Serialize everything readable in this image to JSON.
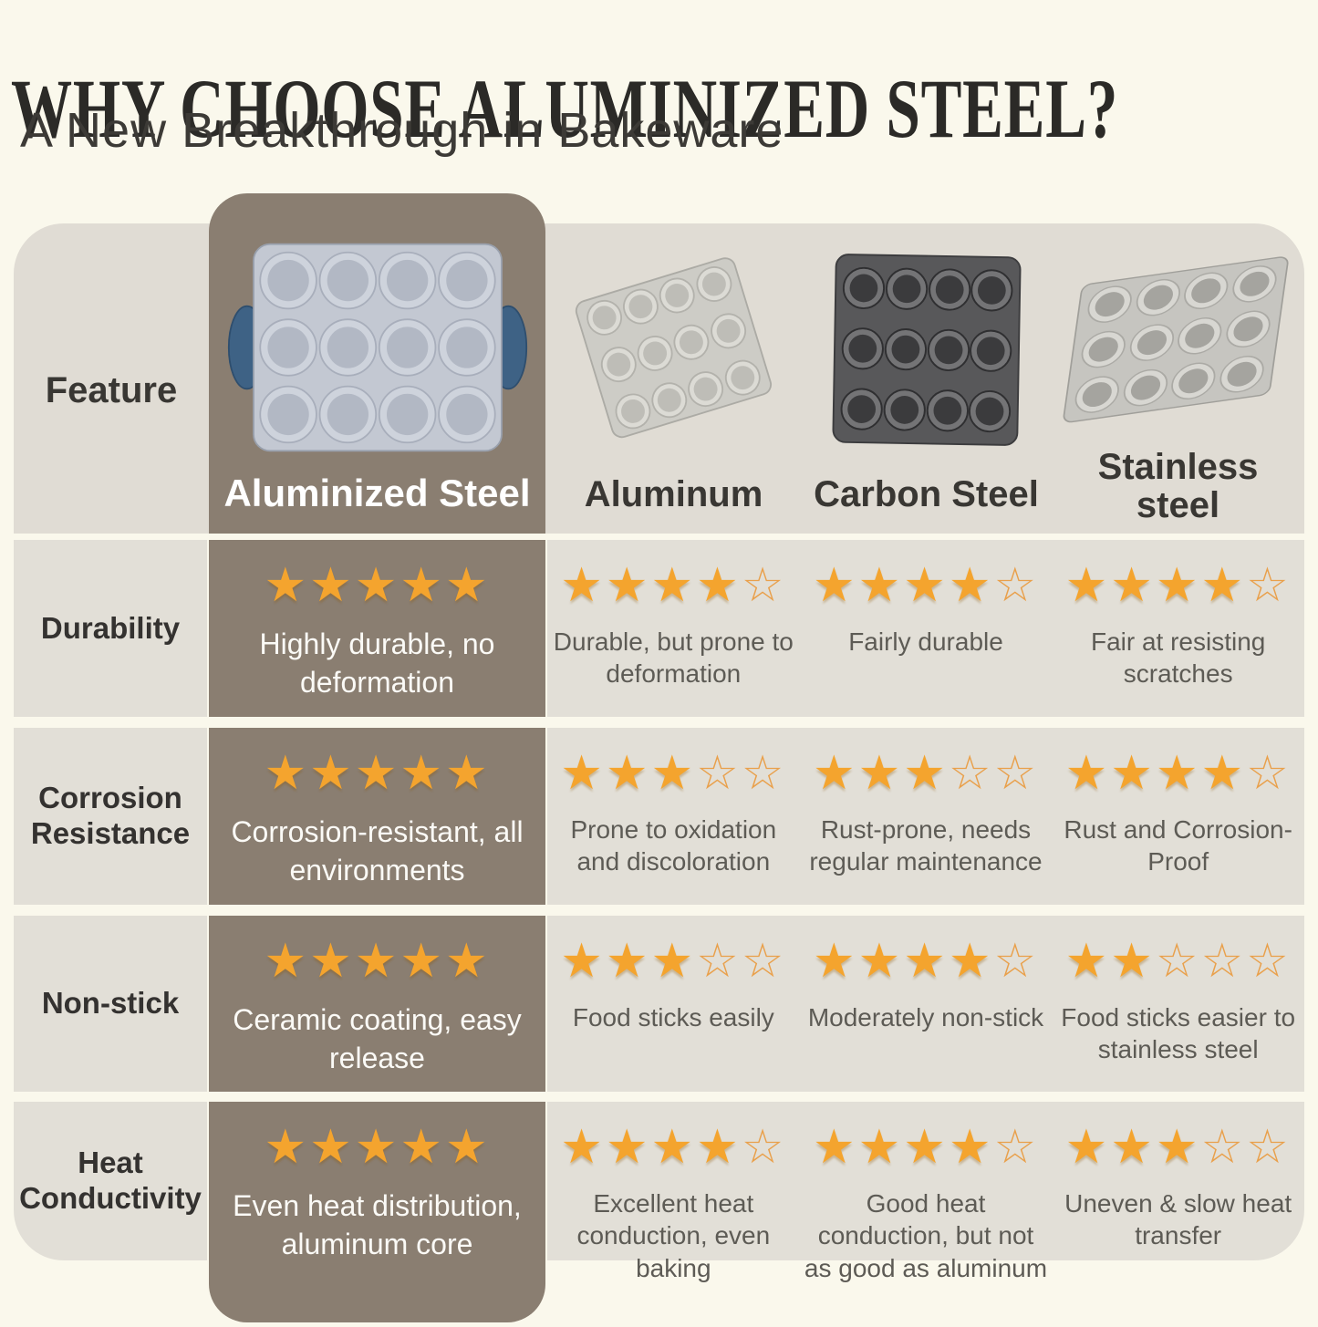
{
  "header": {
    "title": "WHY CHOOSE ALUMINIZED STEEL?",
    "subtitle": "A New Breakthrough in Bakeware"
  },
  "table": {
    "feature_header": "Feature",
    "columns": [
      {
        "label": "Aluminized Steel",
        "image": "aluminized-steel-muffin-pan",
        "highlight": true
      },
      {
        "label": "Aluminum",
        "image": "aluminum-muffin-pan",
        "highlight": false
      },
      {
        "label": "Carbon Steel",
        "image": "carbon-steel-muffin-pan",
        "highlight": false
      },
      {
        "label": "Stainless steel",
        "image": "stainless-steel-muffin-pan",
        "highlight": false
      }
    ],
    "rows": [
      {
        "feature": "Durability",
        "cells": [
          {
            "stars": 5,
            "text": "Highly durable, no deformation"
          },
          {
            "stars": 4,
            "text": "Durable, but prone to deformation"
          },
          {
            "stars": 4,
            "text": "Fairly durable"
          },
          {
            "stars": 4,
            "text": "Fair at resisting scratches"
          }
        ]
      },
      {
        "feature": "Corrosion Resistance",
        "cells": [
          {
            "stars": 5,
            "text": "Corrosion-resistant, all environments"
          },
          {
            "stars": 3,
            "text": "Prone to oxidation and discoloration"
          },
          {
            "stars": 3,
            "text": "Rust-prone, needs regular maintenance"
          },
          {
            "stars": 4,
            "text": "Rust and Corrosion-Proof"
          }
        ]
      },
      {
        "feature": "Non-stick",
        "cells": [
          {
            "stars": 5,
            "text": "Ceramic coating, easy release"
          },
          {
            "stars": 3,
            "text": "Food sticks easily"
          },
          {
            "stars": 4,
            "text": "Moderately non-stick"
          },
          {
            "stars": 2,
            "text": "Food sticks easier to stainless steel"
          }
        ]
      },
      {
        "feature": "Heat Conductivity",
        "cells": [
          {
            "stars": 5,
            "text": "Even heat distribution, aluminum core"
          },
          {
            "stars": 4,
            "text": "Excellent heat conduction, even baking"
          },
          {
            "stars": 4,
            "text": "Good heat conduction, but not as good as aluminum"
          },
          {
            "stars": 3,
            "text": "Uneven & slow heat transfer"
          }
        ]
      }
    ],
    "rating_scale_max": 5
  },
  "colors": {
    "page_background": "#FAF8EC",
    "panel_gray": "#E0DCD4",
    "cell_gray": "#E2DFD7",
    "highlight_brown": "#8A7E71",
    "star_filled": "#F4A42E",
    "star_outline": "#E9A04B",
    "title_text": "#2B2A27",
    "body_text": "#5D5B55",
    "text_on_brown": "#FFFFFF",
    "handle_blue": "#3E6285"
  },
  "chart_data": {
    "type": "table",
    "title": "WHY CHOOSE ALUMINIZED STEEL?",
    "subtitle": "A New Breakthrough in Bakeware",
    "columns": [
      "Feature",
      "Aluminized Steel",
      "Aluminum",
      "Carbon Steel",
      "Stainless steel"
    ],
    "rating_scale": "stars out of 5",
    "rows": [
      {
        "feature": "Durability",
        "ratings": [
          5,
          4,
          4,
          4
        ],
        "notes": [
          "Highly durable, no deformation",
          "Durable, but prone to deformation",
          "Fairly durable",
          "Fair at resisting scratches"
        ]
      },
      {
        "feature": "Corrosion Resistance",
        "ratings": [
          5,
          3,
          3,
          4
        ],
        "notes": [
          "Corrosion-resistant, all environments",
          "Prone to oxidation and discoloration",
          "Rust-prone, needs regular maintenance",
          "Rust and Corrosion-Proof"
        ]
      },
      {
        "feature": "Non-stick",
        "ratings": [
          5,
          3,
          4,
          2
        ],
        "notes": [
          "Ceramic coating, easy release",
          "Food sticks easily",
          "Moderately non-stick",
          "Food sticks easier to stainless steel"
        ]
      },
      {
        "feature": "Heat Conductivity",
        "ratings": [
          5,
          4,
          4,
          3
        ],
        "notes": [
          "Even heat distribution, aluminum core",
          "Excellent heat conduction, even baking",
          "Good heat conduction, but not as good as aluminum",
          "Uneven & slow heat transfer"
        ]
      }
    ]
  }
}
